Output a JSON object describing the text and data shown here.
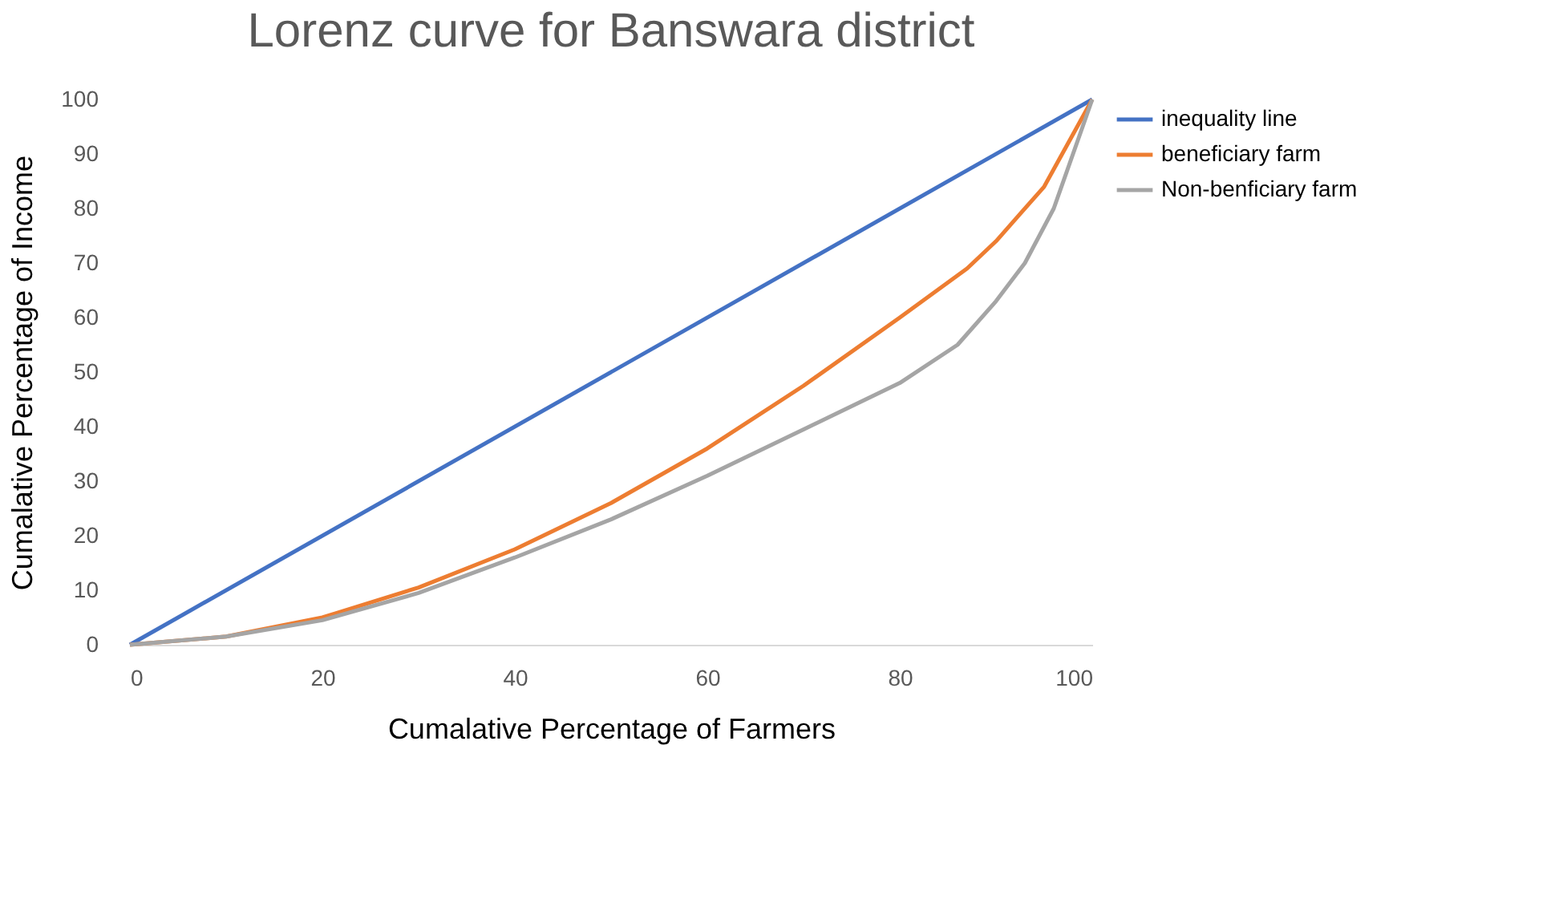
{
  "chart_data": {
    "type": "line",
    "title": "Lorenz curve for Banswara district",
    "xlabel": "Cumalative Percentage of Farmers",
    "ylabel": "Cumalative Percentage of Income",
    "series": [
      {
        "name": "inequality line",
        "color": "#4472c4",
        "x": [
          0,
          100
        ],
        "values": [
          0,
          100
        ]
      },
      {
        "name": "beneficiary farm",
        "color": "#ed7d31",
        "x": [
          0,
          10,
          20,
          30,
          40,
          50,
          60,
          70,
          80,
          87,
          90,
          95,
          100
        ],
        "values": [
          0,
          1.5,
          5,
          10.5,
          17.5,
          26,
          36,
          47.5,
          60,
          69,
          74,
          84,
          100
        ]
      },
      {
        "name": "Non-benficiary farm",
        "color": "#a5a5a5",
        "x": [
          0,
          10,
          20,
          30,
          40,
          50,
          60,
          70,
          80,
          86,
          90,
          93,
          96,
          100
        ],
        "values": [
          0,
          1.5,
          4.5,
          9.5,
          16,
          23,
          31,
          39.5,
          48,
          55,
          63,
          70,
          80,
          100
        ]
      }
    ],
    "xlim": [
      0,
      100
    ],
    "xticks": [
      0,
      20,
      40,
      60,
      80,
      100
    ],
    "ylim": [
      0,
      100
    ],
    "yticks": [
      0,
      10,
      20,
      30,
      40,
      50,
      60,
      70,
      80,
      90,
      100
    ],
    "grid": false,
    "legend": "top right",
    "marker": "none",
    "line_style": "solid"
  }
}
